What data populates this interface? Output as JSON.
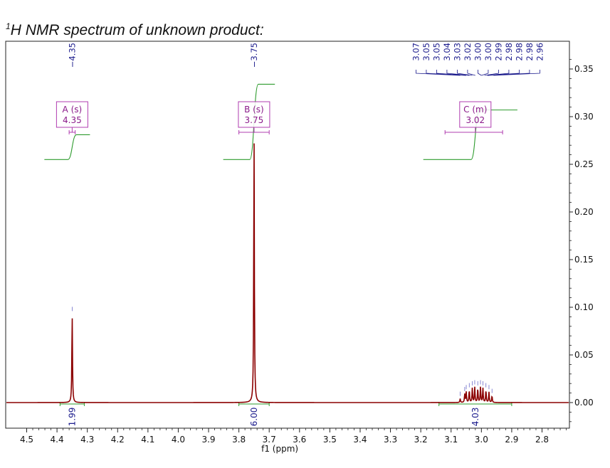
{
  "title": {
    "superscript": "1",
    "text": "H NMR spectrum of unknown product:"
  },
  "colors": {
    "spectrum": "#8b0000",
    "integral": "#2e9b2e",
    "peak_label": "#1a1a8c",
    "multiplet_box": "#b03cb0",
    "axis": "#111111"
  },
  "chart_data": {
    "type": "line",
    "xlabel": "f1 (ppm)",
    "x_reversed": true,
    "xlim": [
      4.56,
      2.7
    ],
    "ylim": [
      -0.025,
      0.375
    ],
    "x_ticks": [
      4.5,
      4.4,
      4.3,
      4.2,
      4.1,
      4.0,
      3.9,
      3.8,
      3.7,
      3.6,
      3.5,
      3.4,
      3.3,
      3.2,
      3.1,
      3.0,
      2.9,
      2.8
    ],
    "x_tick_labels": [
      "4.5",
      "4.4",
      "4.3",
      "4.2",
      "4.1",
      "4.0",
      "3.9",
      "3.8",
      "3.7",
      "3.6",
      "3.5",
      "3.4",
      "3.3",
      "3.2",
      "3.1",
      "3.0",
      "2.9",
      "2.8"
    ],
    "y_ticks": [
      0.0,
      0.05,
      0.1,
      0.15,
      0.2,
      0.25,
      0.3,
      0.35
    ],
    "y_tick_labels": [
      "0.00",
      "0.05",
      "0.10",
      "0.15",
      "0.20",
      "0.25",
      "0.30",
      "0.35"
    ],
    "peaks": [
      {
        "ppm": 4.35,
        "height": 0.093
      },
      {
        "ppm": 3.75,
        "height": 0.28
      },
      {
        "ppm": 3.07,
        "height": 0.004
      },
      {
        "ppm": 3.055,
        "height": 0.009
      },
      {
        "ppm": 3.05,
        "height": 0.011
      },
      {
        "ppm": 3.04,
        "height": 0.013
      },
      {
        "ppm": 3.03,
        "height": 0.015
      },
      {
        "ppm": 3.022,
        "height": 0.016
      },
      {
        "ppm": 3.012,
        "height": 0.015
      },
      {
        "ppm": 3.003,
        "height": 0.016
      },
      {
        "ppm": 2.995,
        "height": 0.015
      },
      {
        "ppm": 2.985,
        "height": 0.013
      },
      {
        "ppm": 2.975,
        "height": 0.011
      },
      {
        "ppm": 2.965,
        "height": 0.007
      }
    ],
    "peak_labels": [
      {
        "ppm": 4.35,
        "label": "4.35",
        "group": "A"
      },
      {
        "ppm": 3.75,
        "label": "3.75",
        "group": "B"
      },
      {
        "ppm": 3.07,
        "label": "3.07",
        "group": "C"
      },
      {
        "ppm": 3.05,
        "label": "3.05",
        "group": "C"
      },
      {
        "ppm": 3.05,
        "label": "3.05",
        "group": "C"
      },
      {
        "ppm": 3.04,
        "label": "3.04",
        "group": "C"
      },
      {
        "ppm": 3.03,
        "label": "3.03",
        "group": "C"
      },
      {
        "ppm": 3.02,
        "label": "3.02",
        "group": "C"
      },
      {
        "ppm": 3.0,
        "label": "3.00",
        "group": "C"
      },
      {
        "ppm": 3.0,
        "label": "3.00",
        "group": "C"
      },
      {
        "ppm": 2.99,
        "label": "2.99",
        "group": "C"
      },
      {
        "ppm": 2.98,
        "label": "2.98",
        "group": "C"
      },
      {
        "ppm": 2.98,
        "label": "2.98",
        "group": "C"
      },
      {
        "ppm": 2.98,
        "label": "2.98",
        "group": "C"
      },
      {
        "ppm": 2.96,
        "label": "2.96",
        "group": "C"
      }
    ],
    "multiplets": [
      {
        "name": "A (s)",
        "shift": "4.35",
        "ppm": 4.35,
        "range": [
          4.36,
          4.34
        ]
      },
      {
        "name": "B (s)",
        "shift": "3.75",
        "ppm": 3.75,
        "range": [
          3.8,
          3.7
        ]
      },
      {
        "name": "C (m)",
        "shift": "3.02",
        "ppm": 3.02,
        "range": [
          3.12,
          2.93
        ]
      }
    ],
    "integrals": [
      {
        "value": "1.99",
        "range": [
          4.39,
          4.31
        ],
        "base": 0.255,
        "top": 0.281
      },
      {
        "value": "6.00",
        "range": [
          3.8,
          3.7
        ],
        "base": 0.255,
        "top": 0.334
      },
      {
        "value": "4.03",
        "range": [
          3.14,
          2.9
        ],
        "base": 0.255,
        "top": 0.307
      }
    ]
  }
}
